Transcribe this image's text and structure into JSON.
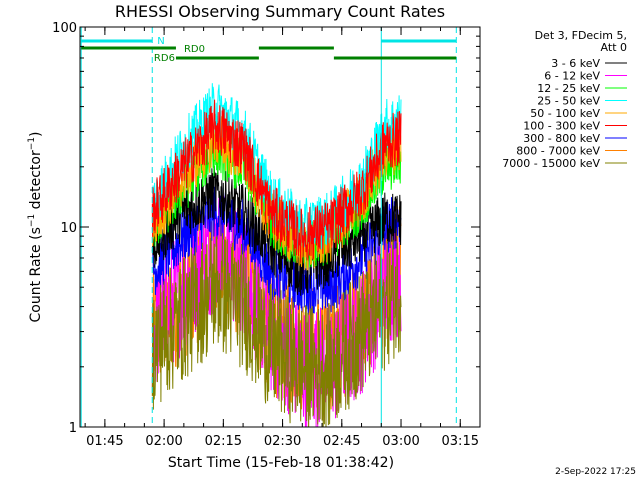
{
  "chart_data": {
    "type": "line",
    "title": "RHESSI Observing Summary Count Rates",
    "xlabel": "Start Time (15-Feb-18 01:38:42)",
    "ylabel": "Count Rate (s⁻¹ detector⁻¹)",
    "ylabel_parts": [
      "Count Rate (s",
      "−1",
      " detector",
      "−1",
      ")"
    ],
    "y_scale": "log",
    "ylim": [
      1,
      100
    ],
    "y_ticks": [
      {
        "value": 1,
        "label": "1"
      },
      {
        "value": 10,
        "label": "10"
      },
      {
        "value": 100,
        "label": "100"
      }
    ],
    "xlim": [
      "01:38:42",
      "03:20:00"
    ],
    "x_ticks": [
      "01:45",
      "02:00",
      "02:15",
      "02:30",
      "02:45",
      "03:00",
      "03:15"
    ],
    "legend_placement": "right",
    "legend_header": [
      "Det 3, FDecim 5,",
      "Att 0"
    ],
    "series": [
      {
        "name": "3 - 6 keV",
        "color": "#000000",
        "x": [
          "01:57",
          "02:05",
          "02:13",
          "02:20",
          "02:27",
          "02:35",
          "02:42",
          "02:50",
          "02:56",
          "03:00"
        ],
        "values": [
          8,
          12,
          15,
          12,
          8,
          6,
          7,
          9,
          11,
          11
        ]
      },
      {
        "name": "6 - 12 keV",
        "color": "#ff00ff",
        "x": [
          "01:57",
          "02:05",
          "02:13",
          "02:20",
          "02:27",
          "02:35",
          "02:42",
          "02:50",
          "02:56",
          "03:00"
        ],
        "values": [
          3,
          5,
          8,
          6,
          3,
          2,
          2,
          3,
          5,
          6
        ]
      },
      {
        "name": "12 - 25 keV",
        "color": "#00ff00",
        "x": [
          "01:57",
          "02:05",
          "02:13",
          "02:20",
          "02:27",
          "02:35",
          "02:42",
          "02:50",
          "02:56",
          "03:00"
        ],
        "values": [
          10,
          16,
          25,
          20,
          11,
          8,
          9,
          13,
          20,
          22
        ]
      },
      {
        "name": "25 - 50 keV",
        "color": "#00ffff",
        "x": [
          "01:57",
          "02:05",
          "02:13",
          "02:20",
          "02:27",
          "02:35",
          "02:42",
          "02:50",
          "02:56",
          "03:00"
        ],
        "values": [
          13,
          25,
          40,
          30,
          14,
          10,
          11,
          17,
          32,
          35
        ]
      },
      {
        "name": "50 - 100 keV",
        "color": "#ffaa00",
        "x": [
          "01:57",
          "02:05",
          "02:13",
          "02:20",
          "02:27",
          "02:35",
          "02:42",
          "02:50",
          "02:56",
          "03:00"
        ],
        "values": [
          10,
          18,
          28,
          22,
          11,
          8,
          9,
          14,
          24,
          26
        ]
      },
      {
        "name": "100 - 300 keV",
        "color": "#ff0000",
        "x": [
          "01:57",
          "02:05",
          "02:13",
          "02:20",
          "02:27",
          "02:35",
          "02:42",
          "02:50",
          "02:56",
          "03:00"
        ],
        "values": [
          12,
          20,
          32,
          25,
          12,
          9,
          10,
          15,
          26,
          28
        ]
      },
      {
        "name": "300 - 800 keV",
        "color": "#0000ff",
        "x": [
          "01:57",
          "02:05",
          "02:13",
          "02:20",
          "02:27",
          "02:35",
          "02:42",
          "02:50",
          "02:56",
          "03:00"
        ],
        "values": [
          6,
          9,
          12,
          10,
          6,
          5,
          5,
          7,
          10,
          11
        ]
      },
      {
        "name": "800 - 7000 keV",
        "color": "#ff8000",
        "x": [
          "01:57",
          "02:05",
          "02:13",
          "02:20",
          "02:27",
          "02:35",
          "02:42",
          "02:50",
          "02:56",
          "03:00"
        ],
        "values": [
          3,
          4.5,
          7,
          5.5,
          3,
          2.5,
          2.5,
          3.5,
          5.5,
          7
        ]
      },
      {
        "name": "7000 - 15000 keV",
        "color": "#808000",
        "x": [
          "01:57",
          "02:05",
          "02:13",
          "02:20",
          "02:27",
          "02:35",
          "02:42",
          "02:50",
          "02:56",
          "03:00"
        ],
        "values": [
          2.5,
          3.5,
          5,
          4,
          2.5,
          2,
          2,
          3,
          4,
          5
        ]
      }
    ],
    "annotations": {
      "night": {
        "label": "N",
        "color": "#00e5e5",
        "intervals": [
          [
            "01:39",
            "01:57"
          ],
          [
            "02:55",
            "03:14"
          ]
        ]
      },
      "attenuator": {
        "color": "#008000",
        "segments": [
          {
            "start": "01:39",
            "end": "02:03",
            "level": "upper",
            "label": "RD0",
            "label_at": "02:03"
          },
          {
            "start": "02:03",
            "end": "02:24",
            "level": "lower",
            "label": "RD6",
            "label_at": "02:03"
          },
          {
            "start": "02:24",
            "end": "02:43",
            "level": "upper",
            "label": ""
          },
          {
            "start": "02:43",
            "end": "03:14",
            "level": "lower",
            "label": ""
          }
        ]
      },
      "day_night_lines": {
        "solid": [
          "01:39",
          "02:55"
        ],
        "dashed": [
          "01:57",
          "03:14"
        ],
        "color": "#00e5e5"
      }
    }
  },
  "footer": {
    "date": "2-Sep-2022 17:25"
  }
}
